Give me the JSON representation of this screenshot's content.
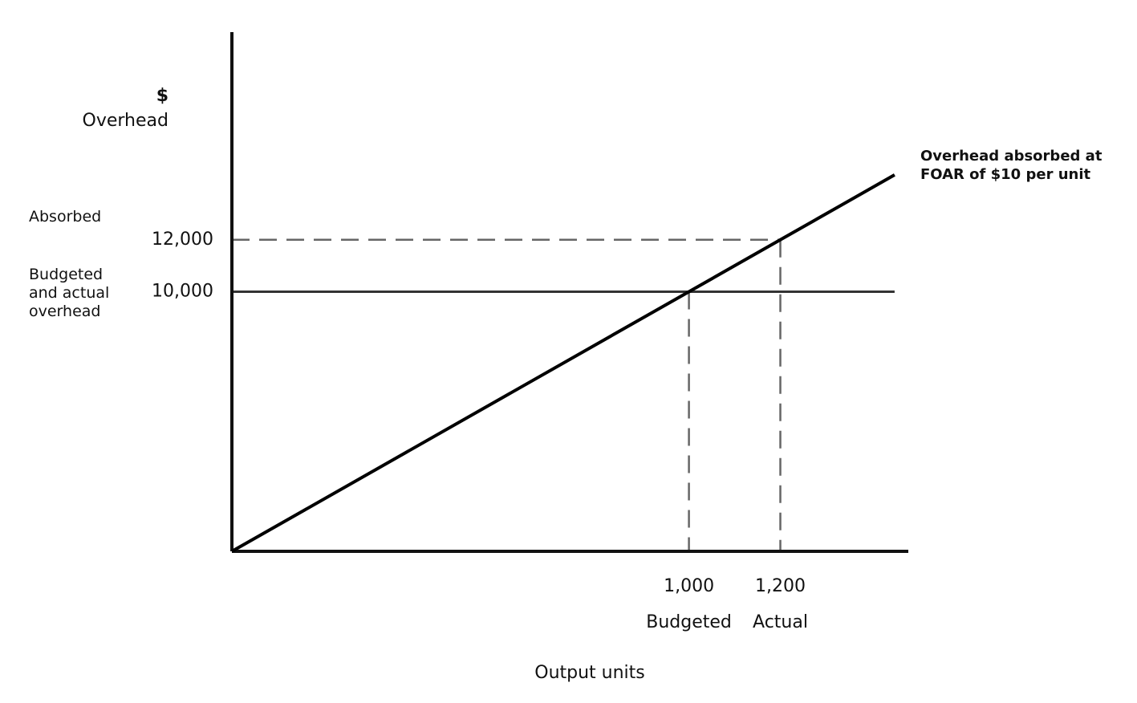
{
  "chart_data": {
    "type": "line",
    "y_label": [
      "$",
      "Overhead"
    ],
    "x_label": "Output units",
    "xlim": [
      0,
      1480
    ],
    "ylim": [
      0,
      20000
    ],
    "xticks": [
      {
        "value": 1000,
        "label": "1,000"
      },
      {
        "value": 1200,
        "label": "1,200"
      }
    ],
    "xtick_captions": [
      "Budgeted",
      "Actual"
    ],
    "yticks": [
      {
        "value": 12000,
        "label": "12,000"
      },
      {
        "value": 10000,
        "label": "10,000"
      }
    ],
    "ytick_captions": [
      "Absorbed",
      "Budgeted and actual overhead"
    ],
    "series": [
      {
        "name": "Overhead absorbed at FOAR of $10 per unit",
        "color": "#000000",
        "x": [
          0,
          1000,
          1200,
          1450
        ],
        "values": [
          0,
          10000,
          12000,
          14500
        ]
      }
    ],
    "hlines": [
      {
        "value": 10000,
        "style": "solid"
      }
    ],
    "guides": [
      {
        "x": 1000,
        "y": 10000,
        "to": "x"
      },
      {
        "x": 1200,
        "y": 12000,
        "to": "both"
      }
    ]
  }
}
